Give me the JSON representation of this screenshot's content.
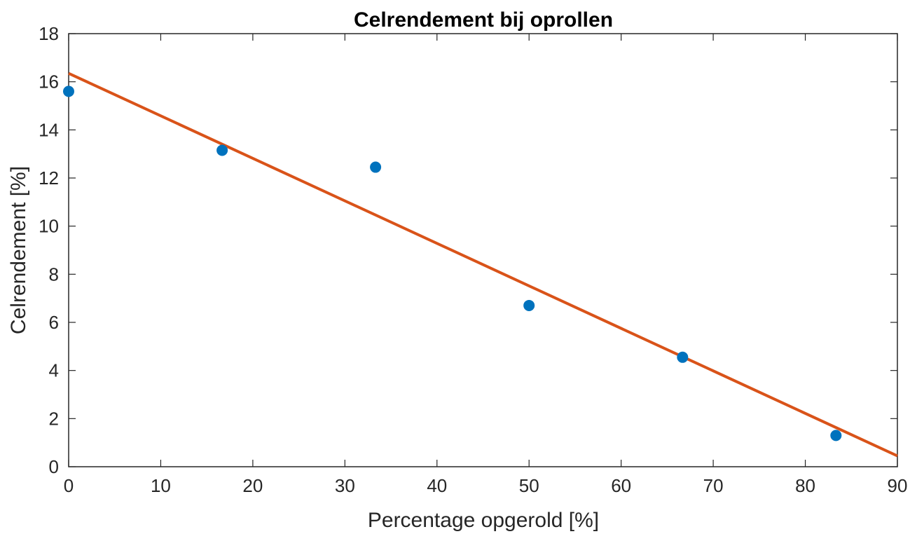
{
  "chart_data": {
    "type": "scatter",
    "title": "Celrendement bij oprollen",
    "xlabel": "Percentage opgerold [%]",
    "ylabel": "Celrendement [%]",
    "xlim": [
      0,
      90
    ],
    "ylim": [
      0,
      18
    ],
    "xticks": [
      0,
      10,
      20,
      30,
      40,
      50,
      60,
      70,
      80,
      90
    ],
    "yticks": [
      0,
      2,
      4,
      6,
      8,
      10,
      12,
      14,
      16,
      18
    ],
    "grid": false,
    "series": [
      {
        "type": "scatter",
        "color": "#0072bd",
        "x": [
          0,
          16.67,
          33.33,
          50,
          66.67,
          83.33
        ],
        "y": [
          15.6,
          13.15,
          12.45,
          6.7,
          4.55,
          1.3
        ]
      },
      {
        "type": "line",
        "color": "#d95319",
        "x": [
          0,
          90
        ],
        "y": [
          16.35,
          0.45
        ]
      }
    ]
  }
}
